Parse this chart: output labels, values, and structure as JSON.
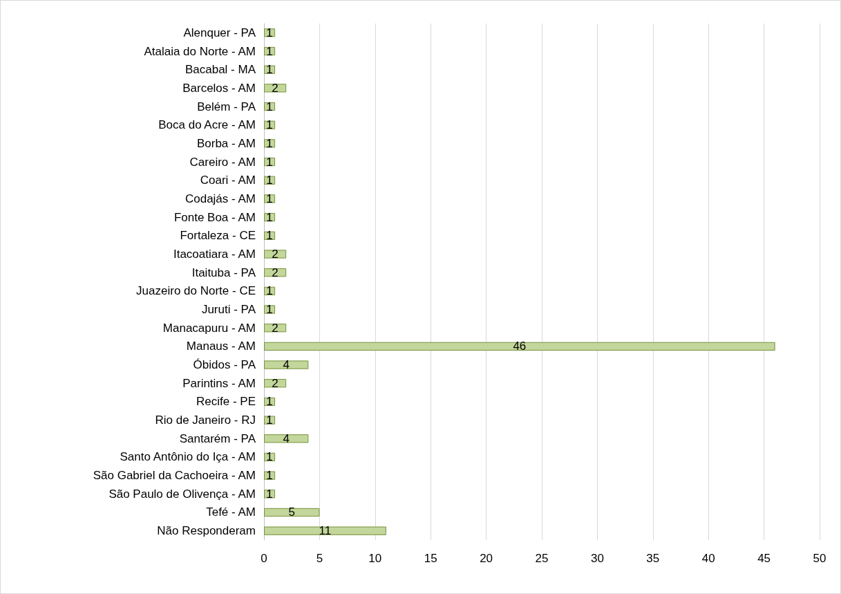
{
  "chart_data": {
    "type": "bar",
    "orientation": "horizontal",
    "categories": [
      "Alenquer - PA",
      "Atalaia do Norte - AM",
      "Bacabal - MA",
      "Barcelos - AM",
      "Belém - PA",
      "Boca do Acre - AM",
      "Borba - AM",
      "Careiro - AM",
      "Coari - AM",
      "Codajás - AM",
      "Fonte Boa - AM",
      "Fortaleza - CE",
      "Itacoatiara - AM",
      "Itaituba - PA",
      "Juazeiro do Norte - CE",
      "Juruti - PA",
      "Manacapuru - AM",
      "Manaus - AM",
      "Óbidos - PA",
      "Parintins - AM",
      "Recife - PE",
      "Rio de Janeiro - RJ",
      "Santarém - PA",
      "Santo Antônio do Iça - AM",
      "São Gabriel da Cachoeira - AM",
      "São Paulo de Olivença - AM",
      "Tefé - AM",
      "Não Responderam"
    ],
    "values": [
      1,
      1,
      1,
      2,
      1,
      1,
      1,
      1,
      1,
      1,
      1,
      1,
      2,
      2,
      1,
      1,
      2,
      46,
      4,
      2,
      1,
      1,
      4,
      1,
      1,
      1,
      5,
      11
    ],
    "color": "#c3d69b",
    "xlim": [
      0,
      50
    ],
    "xticks": [
      0,
      5,
      10,
      15,
      20,
      25,
      30,
      35,
      40,
      45,
      50
    ],
    "grid": "x",
    "data_labels": true
  }
}
